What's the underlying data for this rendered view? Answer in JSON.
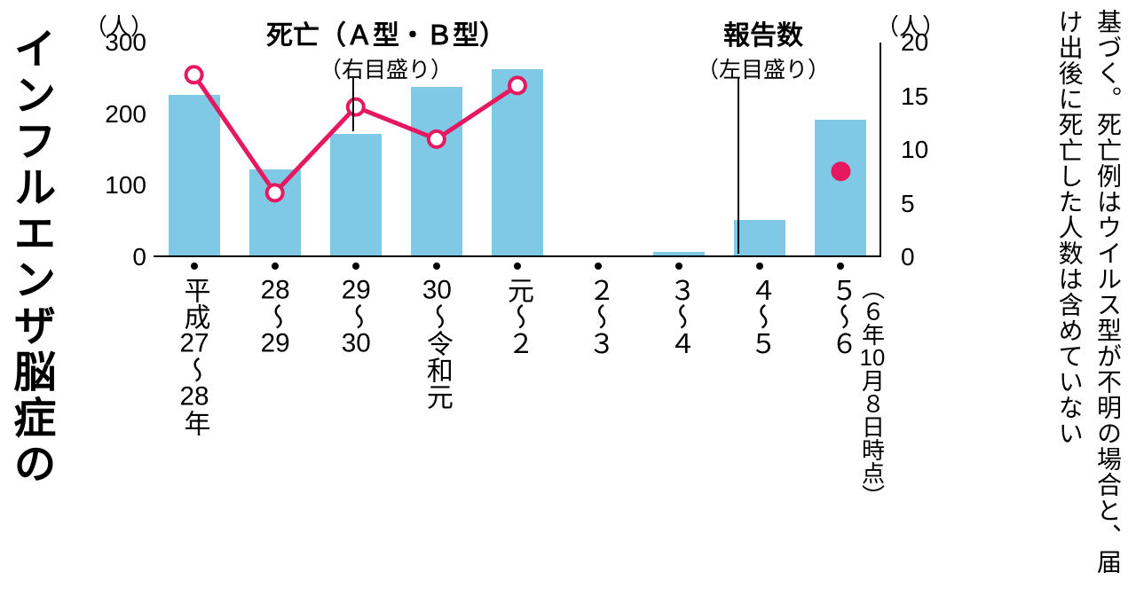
{
  "title": "インフルエンザ脳症の",
  "body_text": "基づく。死亡例はウイルス型が不明の場合と、届け出後に死亡した人数は含めていない",
  "chart": {
    "type": "bar+line",
    "left_axis": {
      "unit": "（人）",
      "min": 0,
      "max": 300,
      "ticks": [
        0,
        100,
        200,
        300
      ]
    },
    "right_axis": {
      "unit": "（人）",
      "min": 0,
      "max": 20,
      "ticks": [
        0,
        5,
        10,
        15,
        20
      ]
    },
    "bar_color": "#7fc9e6",
    "line_color": "#e6185f",
    "line_width": 5,
    "marker_fill": "#ffffff",
    "marker_stroke": "#e6185f",
    "single_marker_fill": "#e6185f",
    "categories": [
      "平成27〜28年",
      "28〜29",
      "29〜30",
      "30〜令和元",
      "元〜２",
      "２〜３",
      "３〜４",
      "４〜５",
      "５〜６"
    ],
    "bar_values_left_scale": [
      225,
      120,
      170,
      235,
      260,
      0,
      5,
      50,
      190
    ],
    "line_values_right_scale": [
      17,
      6,
      14,
      11,
      16,
      null,
      null,
      null,
      8
    ],
    "legend_deaths_title": "死亡（Ａ型・Ｂ型）",
    "legend_deaths_sub": "（右目盛り）",
    "legend_reports_title": "報告数",
    "legend_reports_sub": "（左目盛り）",
    "note": "（６年10月８日時点）",
    "background_color": "#ffffff"
  }
}
